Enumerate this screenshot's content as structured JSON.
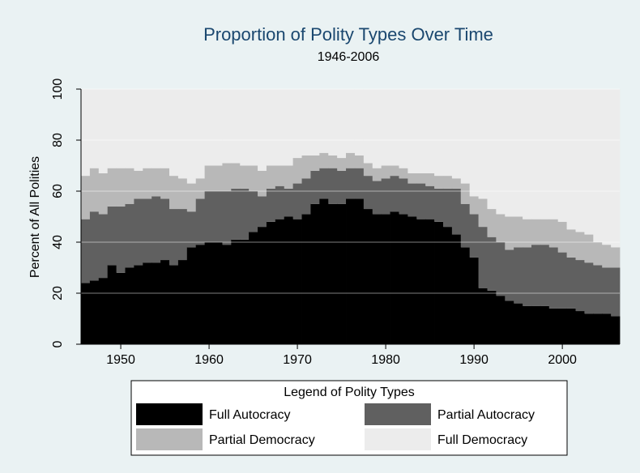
{
  "chart_data": {
    "type": "stacked_area",
    "title": "Proportion of Polity Types Over Time",
    "subtitle": "1946-2006",
    "y_label": "Percent of All Polities",
    "x": [
      1946,
      1947,
      1948,
      1949,
      1950,
      1951,
      1952,
      1953,
      1954,
      1955,
      1956,
      1957,
      1958,
      1959,
      1960,
      1961,
      1962,
      1963,
      1964,
      1965,
      1966,
      1967,
      1968,
      1969,
      1970,
      1971,
      1972,
      1973,
      1974,
      1975,
      1976,
      1977,
      1978,
      1979,
      1980,
      1981,
      1982,
      1983,
      1984,
      1985,
      1986,
      1987,
      1988,
      1989,
      1990,
      1991,
      1992,
      1993,
      1994,
      1995,
      1996,
      1997,
      1998,
      1999,
      2000,
      2001,
      2002,
      2003,
      2004,
      2005,
      2006
    ],
    "series": [
      {
        "name": "Full Autocracy",
        "color": "#000000",
        "values": [
          24,
          25,
          26,
          31,
          28,
          30,
          31,
          32,
          32,
          33,
          31,
          33,
          38,
          39,
          40,
          40,
          39,
          41,
          41,
          44,
          46,
          48,
          49,
          50,
          49,
          51,
          55,
          57,
          55,
          55,
          57,
          57,
          53,
          51,
          51,
          52,
          51,
          50,
          49,
          49,
          48,
          46,
          43,
          38,
          34,
          22,
          21,
          19,
          17,
          16,
          15,
          15,
          15,
          14,
          14,
          14,
          13,
          12,
          12,
          12,
          11
        ]
      },
      {
        "name": "Partial Autocracy",
        "color": "#606060",
        "values": [
          25,
          27,
          25,
          23,
          26,
          25,
          26,
          25,
          26,
          24,
          22,
          20,
          14,
          18,
          20,
          20,
          21,
          20,
          20,
          16,
          12,
          13,
          13,
          11,
          14,
          14,
          13,
          12,
          14,
          13,
          12,
          12,
          13,
          13,
          14,
          14,
          14,
          13,
          14,
          13,
          13,
          15,
          18,
          17,
          17,
          24,
          21,
          21,
          20,
          22,
          23,
          24,
          24,
          24,
          22,
          20,
          20,
          20,
          19,
          18,
          19
        ]
      },
      {
        "name": "Partial Democracy",
        "color": "#b8b8b8",
        "values": [
          17,
          17,
          16,
          15,
          15,
          14,
          11,
          12,
          11,
          12,
          13,
          12,
          11,
          8,
          10,
          10,
          11,
          10,
          9,
          10,
          10,
          9,
          8,
          9,
          10,
          9,
          6,
          6,
          5,
          5,
          6,
          5,
          5,
          5,
          5,
          4,
          4,
          4,
          4,
          5,
          5,
          5,
          4,
          8,
          7,
          11,
          11,
          11,
          13,
          12,
          11,
          10,
          10,
          11,
          12,
          11,
          11,
          11,
          9,
          9,
          8
        ]
      },
      {
        "name": "Full Democracy",
        "color": "#ececec",
        "values": [
          34,
          31,
          33,
          31,
          31,
          31,
          32,
          31,
          31,
          31,
          34,
          35,
          37,
          35,
          30,
          30,
          29,
          29,
          30,
          30,
          32,
          30,
          30,
          30,
          27,
          26,
          26,
          25,
          26,
          27,
          25,
          26,
          29,
          31,
          30,
          30,
          31,
          33,
          33,
          33,
          34,
          34,
          35,
          37,
          42,
          43,
          47,
          49,
          50,
          50,
          51,
          51,
          51,
          51,
          52,
          55,
          56,
          57,
          60,
          61,
          62
        ]
      }
    ],
    "xlim": [
      1945.5,
      2006.5
    ],
    "xticks": [
      1950,
      1960,
      1970,
      1980,
      1990,
      2000
    ],
    "ylim": [
      0,
      100
    ],
    "yticks": [
      0,
      20,
      40,
      60,
      80,
      100
    ],
    "grid": true,
    "legend_title": "Legend of Polity Types",
    "legend_position": "bottom"
  }
}
